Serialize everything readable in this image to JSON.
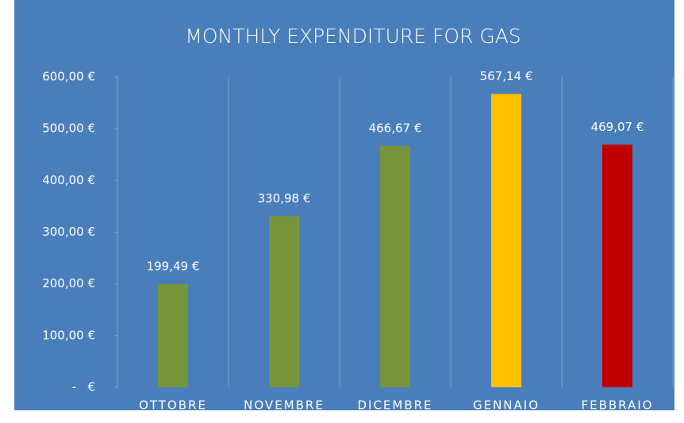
{
  "chart_data": {
    "type": "bar",
    "title": "MONTHLY EXPENDITURE FOR GAS",
    "categories": [
      "OTTOBRE",
      "NOVEMBRE",
      "DICEMBRE",
      "GENNAIO",
      "FEBBRAIO"
    ],
    "values": [
      199.49,
      330.98,
      466.67,
      567.14,
      469.07
    ],
    "value_labels": [
      "199,49 €",
      "330,98 €",
      "466,67 €",
      "567,14 €",
      "469,07 €"
    ],
    "colors": [
      "#77933c",
      "#77933c",
      "#77933c",
      "#ffc000",
      "#c00000"
    ],
    "ylim": [
      0,
      600
    ],
    "yticks": [
      {
        "value": 0,
        "label": "-   €"
      },
      {
        "value": 100,
        "label": "100,00 €"
      },
      {
        "value": 200,
        "label": "200,00 €"
      },
      {
        "value": 300,
        "label": "300,00 €"
      },
      {
        "value": 400,
        "label": "400,00 €"
      },
      {
        "value": 500,
        "label": "500,00 €"
      },
      {
        "value": 600,
        "label": "600,00 €"
      }
    ]
  }
}
